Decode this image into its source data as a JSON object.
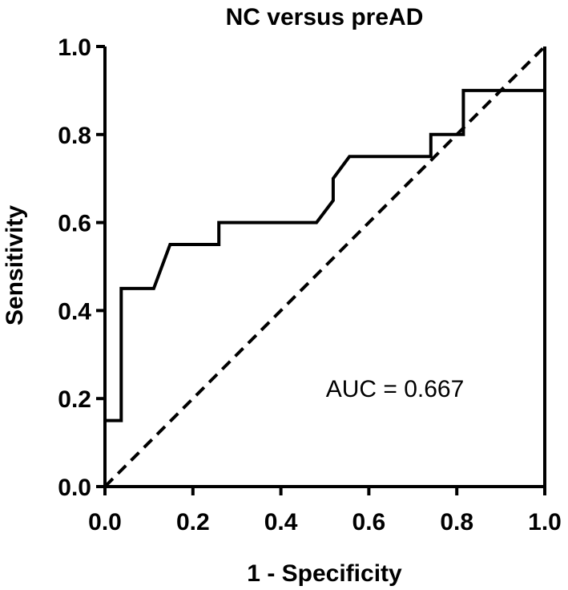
{
  "chart_data": {
    "type": "line",
    "title": "NC versus preAD",
    "xlabel": "1 - Specificity",
    "ylabel": "Sensitivity",
    "xlim": [
      0,
      1
    ],
    "ylim": [
      0,
      1
    ],
    "xticks": [
      0.0,
      0.2,
      0.4,
      0.6,
      0.8,
      1.0
    ],
    "yticks": [
      0.0,
      0.2,
      0.4,
      0.6,
      0.8,
      1.0
    ],
    "xtick_labels": [
      "0.0",
      "0.2",
      "0.4",
      "0.6",
      "0.8",
      "1.0"
    ],
    "ytick_labels": [
      "0.0",
      "0.2",
      "0.4",
      "0.6",
      "0.8",
      "1.0"
    ],
    "grid": false,
    "legend": "none",
    "annotation": "AUC = 0.667",
    "series": [
      {
        "style": "solid",
        "color": "#000000",
        "points": [
          [
            0.0,
            0.15
          ],
          [
            0.037,
            0.15
          ],
          [
            0.037,
            0.45
          ],
          [
            0.111,
            0.45
          ],
          [
            0.148,
            0.55
          ],
          [
            0.259,
            0.55
          ],
          [
            0.259,
            0.6
          ],
          [
            0.481,
            0.6
          ],
          [
            0.519,
            0.65
          ],
          [
            0.519,
            0.7
          ],
          [
            0.556,
            0.75
          ],
          [
            0.741,
            0.75
          ],
          [
            0.741,
            0.8
          ],
          [
            0.815,
            0.8
          ],
          [
            0.815,
            0.9
          ],
          [
            1.0,
            0.9
          ]
        ]
      },
      {
        "style": "dashed",
        "color": "#000000",
        "points": [
          [
            0.0,
            0.0
          ],
          [
            1.0,
            1.0
          ]
        ]
      }
    ]
  }
}
